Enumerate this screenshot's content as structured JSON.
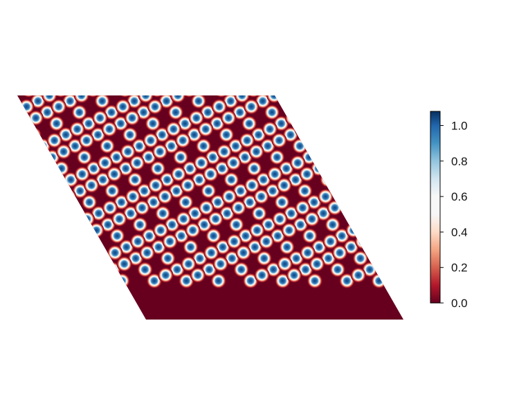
{
  "chart_data": {
    "type": "heatmap",
    "title": "",
    "xlabel": "",
    "ylabel": "",
    "pattern": "hexagonal lattice of intensity peaks on a rhombus-shaped (sheared) domain",
    "value_range": [
      0.0,
      1.08
    ],
    "background_value": 0.0,
    "peak_value": 1.05,
    "colormap": {
      "name": "RdBu",
      "stops": [
        {
          "v": 0.0,
          "color": "#67001f"
        },
        {
          "v": 0.1,
          "color": "#b2182b"
        },
        {
          "v": 0.2,
          "color": "#d6604d"
        },
        {
          "v": 0.3,
          "color": "#f4a582"
        },
        {
          "v": 0.4,
          "color": "#fddbc7"
        },
        {
          "v": 0.5,
          "color": "#f7f7f7"
        },
        {
          "v": 0.6,
          "color": "#f7f7f7"
        },
        {
          "v": 0.7,
          "color": "#d1e5f0"
        },
        {
          "v": 0.8,
          "color": "#92c5de"
        },
        {
          "v": 0.9,
          "color": "#4393c3"
        },
        {
          "v": 1.0,
          "color": "#2166ac"
        },
        {
          "v": 1.08,
          "color": "#053061"
        }
      ]
    },
    "colorbar": {
      "ticks": [
        0.0,
        0.2,
        0.4,
        0.6,
        0.8,
        1.0
      ],
      "tick_labels": [
        "0.0",
        "0.2",
        "0.4",
        "0.6",
        "0.8",
        "1.0"
      ],
      "placement": "right"
    },
    "axes_visible": false,
    "grid": false
  }
}
